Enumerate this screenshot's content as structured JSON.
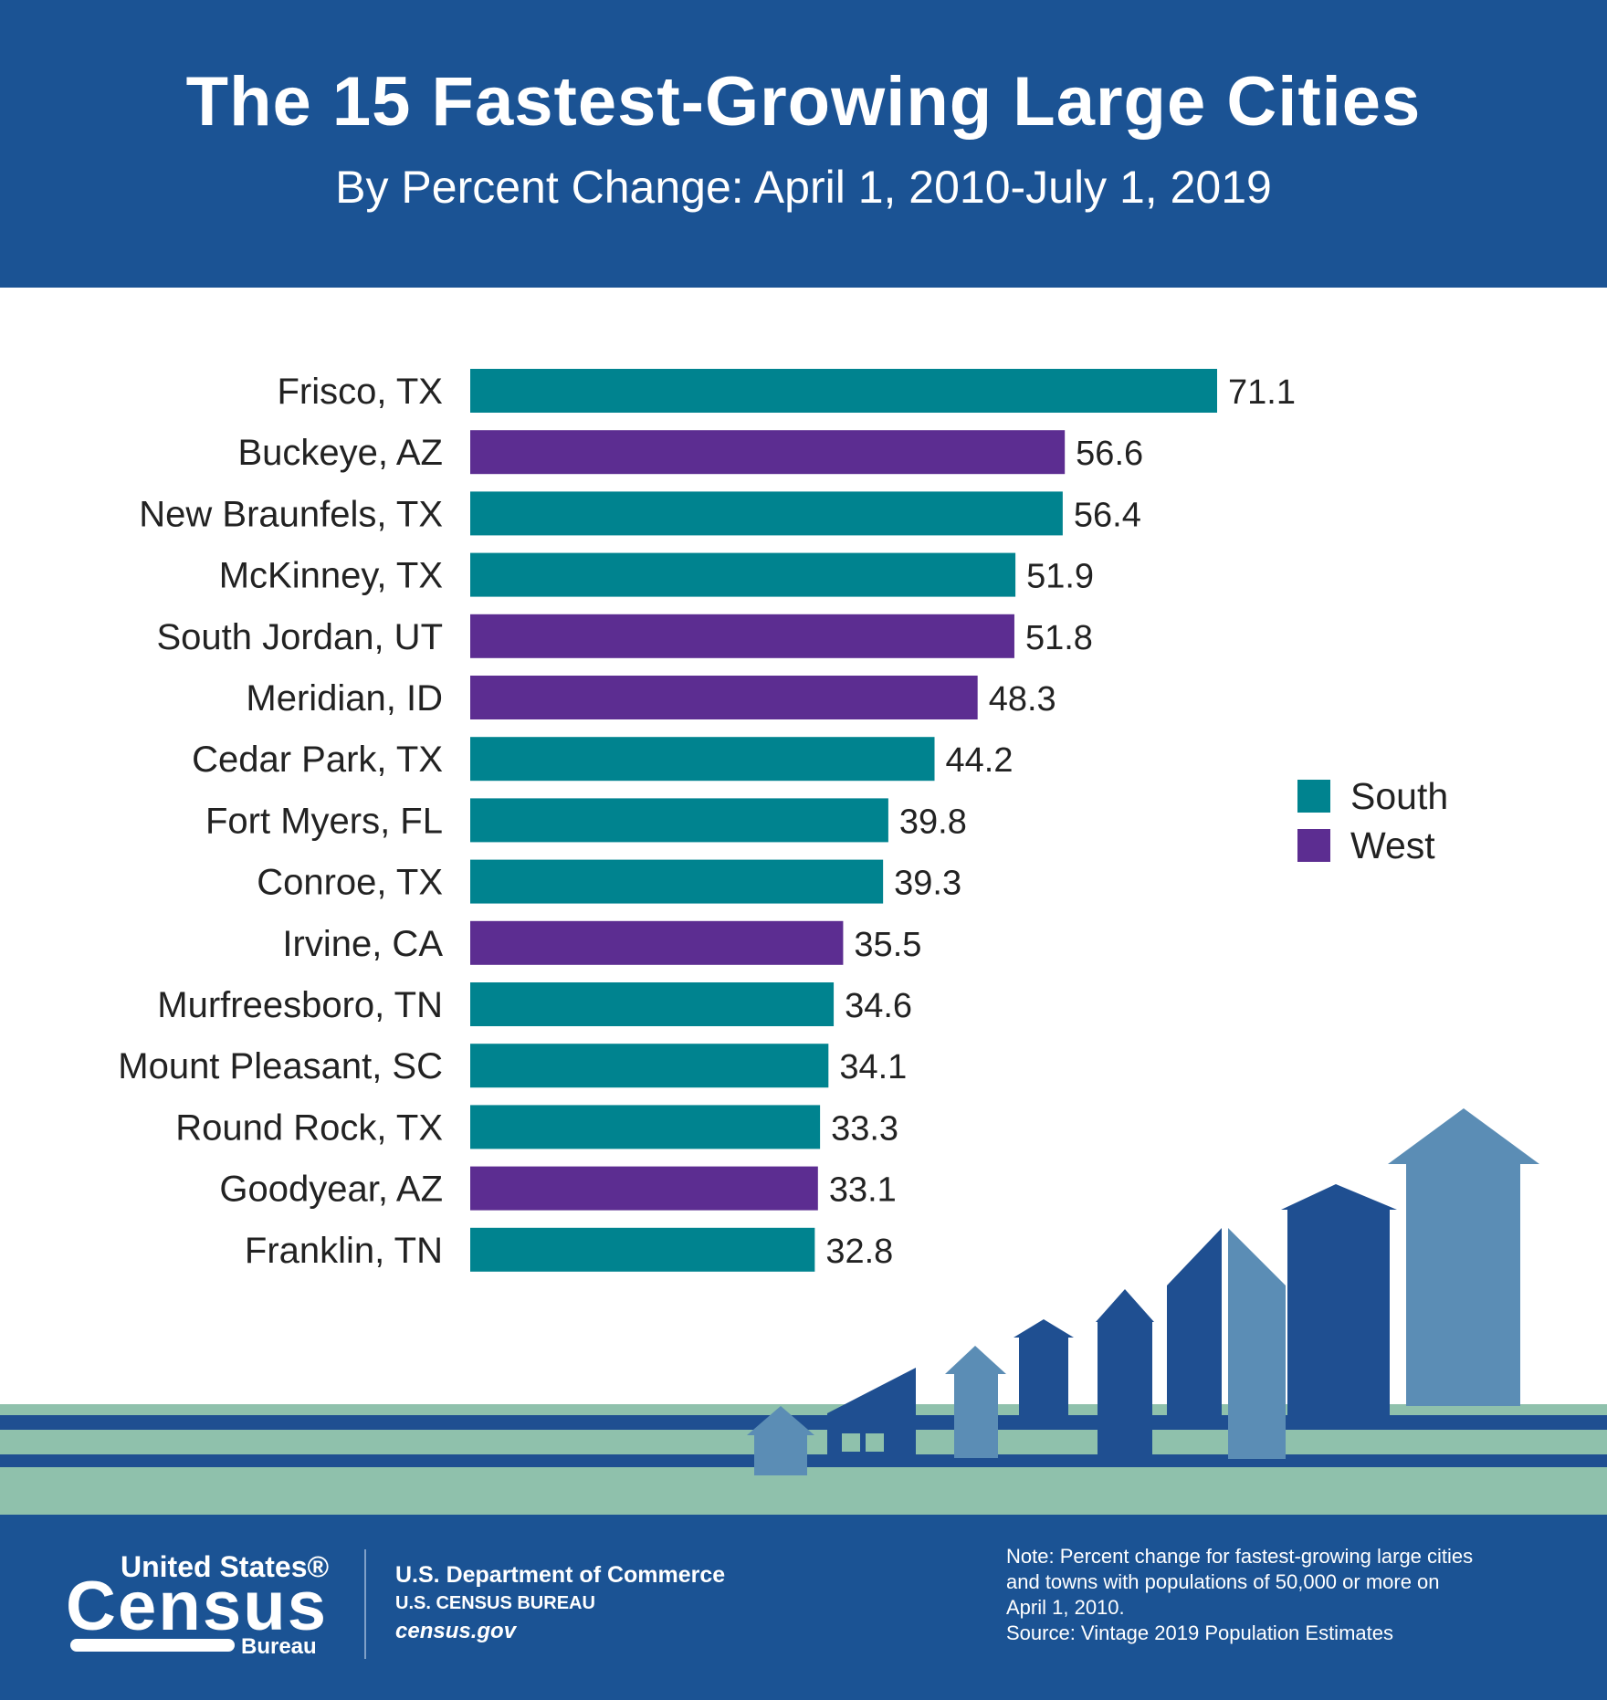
{
  "header": {
    "title": "The 15 Fastest-Growing Large Cities",
    "subtitle": "By Percent Change: April 1, 2010-July 1, 2019"
  },
  "colors": {
    "South": "#00838f",
    "West": "#5c2d91",
    "header": "#1b5394"
  },
  "chart_data": {
    "type": "bar",
    "orientation": "horizontal",
    "title": "The 15 Fastest-Growing Large Cities",
    "subtitle": "By Percent Change: April 1, 2010-July 1, 2019",
    "grid": false,
    "legend_position": "right",
    "categories": [
      "Frisco, TX",
      "Buckeye, AZ",
      "New Braunfels, TX",
      "McKinney, TX",
      "South Jordan, UT",
      "Meridian, ID",
      "Cedar Park, TX",
      "Fort Myers, FL",
      "Conroe, TX",
      "Irvine, CA",
      "Murfreesboro, TN",
      "Mount Pleasant, SC",
      "Round Rock, TX",
      "Goodyear, AZ",
      "Franklin, TN"
    ],
    "values": [
      71.1,
      56.6,
      56.4,
      51.9,
      51.8,
      48.3,
      44.2,
      39.8,
      39.3,
      35.5,
      34.6,
      34.1,
      33.3,
      33.1,
      32.8
    ],
    "value_labels": [
      "71.1",
      "56.6",
      "56.4",
      "51.9",
      "51.8",
      "48.3",
      "44.2",
      "39.8",
      "39.3",
      "35.5",
      "34.6",
      "34.1",
      "33.3",
      "33.1",
      "32.8"
    ],
    "region": [
      "South",
      "West",
      "South",
      "South",
      "West",
      "West",
      "South",
      "South",
      "South",
      "West",
      "South",
      "South",
      "South",
      "West",
      "South"
    ],
    "legend": [
      "South",
      "West"
    ]
  },
  "footer": {
    "logo_text": "United States Census Bureau",
    "department": "U.S. Department of Commerce",
    "bureau": "U.S. CENSUS BUREAU",
    "website": "census.gov",
    "note_lines": [
      "Note: Percent change for fastest-growing large cities",
      "and towns with populations of 50,000 or more on",
      "April 1, 2010.",
      "Source: Vintage 2019 Population Estimates"
    ]
  }
}
